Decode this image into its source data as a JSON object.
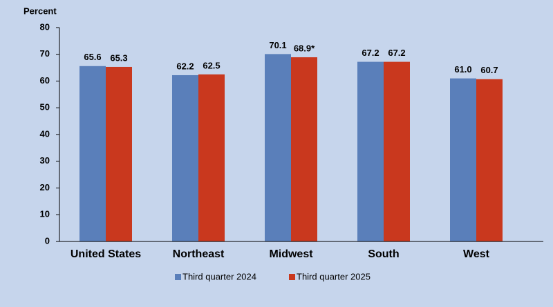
{
  "chart_data": {
    "type": "bar",
    "y_label": "Percent",
    "categories": [
      "United States",
      "Northeast",
      "Midwest",
      "South",
      "West"
    ],
    "series": [
      {
        "name": "Third quarter 2024",
        "color": "#5a7fba",
        "values": [
          65.6,
          62.2,
          70.1,
          67.2,
          61.0
        ],
        "value_labels": [
          "65.6",
          "62.2",
          "70.1",
          "67.2",
          "61.0"
        ]
      },
      {
        "name": "Third quarter 2025",
        "color": "#c9381e",
        "values": [
          65.3,
          62.5,
          68.9,
          67.2,
          60.7
        ],
        "value_labels": [
          "65.3",
          "62.5",
          "68.9*",
          "67.2",
          "60.7"
        ]
      }
    ],
    "ylim": [
      0,
      80
    ],
    "yticks": [
      0,
      10,
      20,
      30,
      40,
      50,
      60,
      70,
      80
    ],
    "legend": "bottom"
  }
}
